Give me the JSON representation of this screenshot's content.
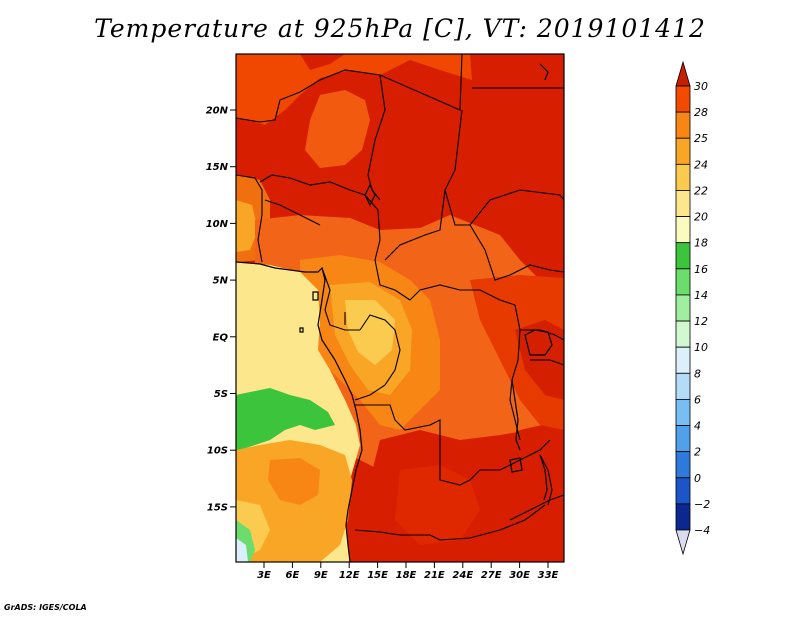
{
  "title": "Temperature at 925hPa [C], VT: 2019101412",
  "credit": "GrADS: IGES/COLA",
  "map": {
    "lat_labels": [
      "20N",
      "15N",
      "10N",
      "5N",
      "EQ",
      "5S",
      "10S",
      "15S"
    ],
    "lon_labels": [
      "3E",
      "6E",
      "9E",
      "12E",
      "15E",
      "18E",
      "21E",
      "24E",
      "27E",
      "30E",
      "33E"
    ]
  },
  "colorbar": {
    "labels": [
      "30",
      "28",
      "25",
      "24",
      "22",
      "20",
      "18",
      "16",
      "14",
      "12",
      "10",
      "8",
      "6",
      "4",
      "2",
      "0",
      "−2",
      "−4"
    ],
    "colors": [
      "#e62000",
      "#f24b00",
      "#f78614",
      "#f9a626",
      "#fbcb50",
      "#fde78c",
      "#fbfbbf",
      "#3cc43c",
      "#6cdc6c",
      "#a0eea0",
      "#d2f8d2",
      "#dcf0fc",
      "#b4dcf8",
      "#78bef4",
      "#50a0ec",
      "#2e7adc",
      "#1b55c8",
      "#0c2890",
      "#060a60"
    ],
    "over_color": "#c81e00",
    "under_color": "#dcdcf0"
  }
}
